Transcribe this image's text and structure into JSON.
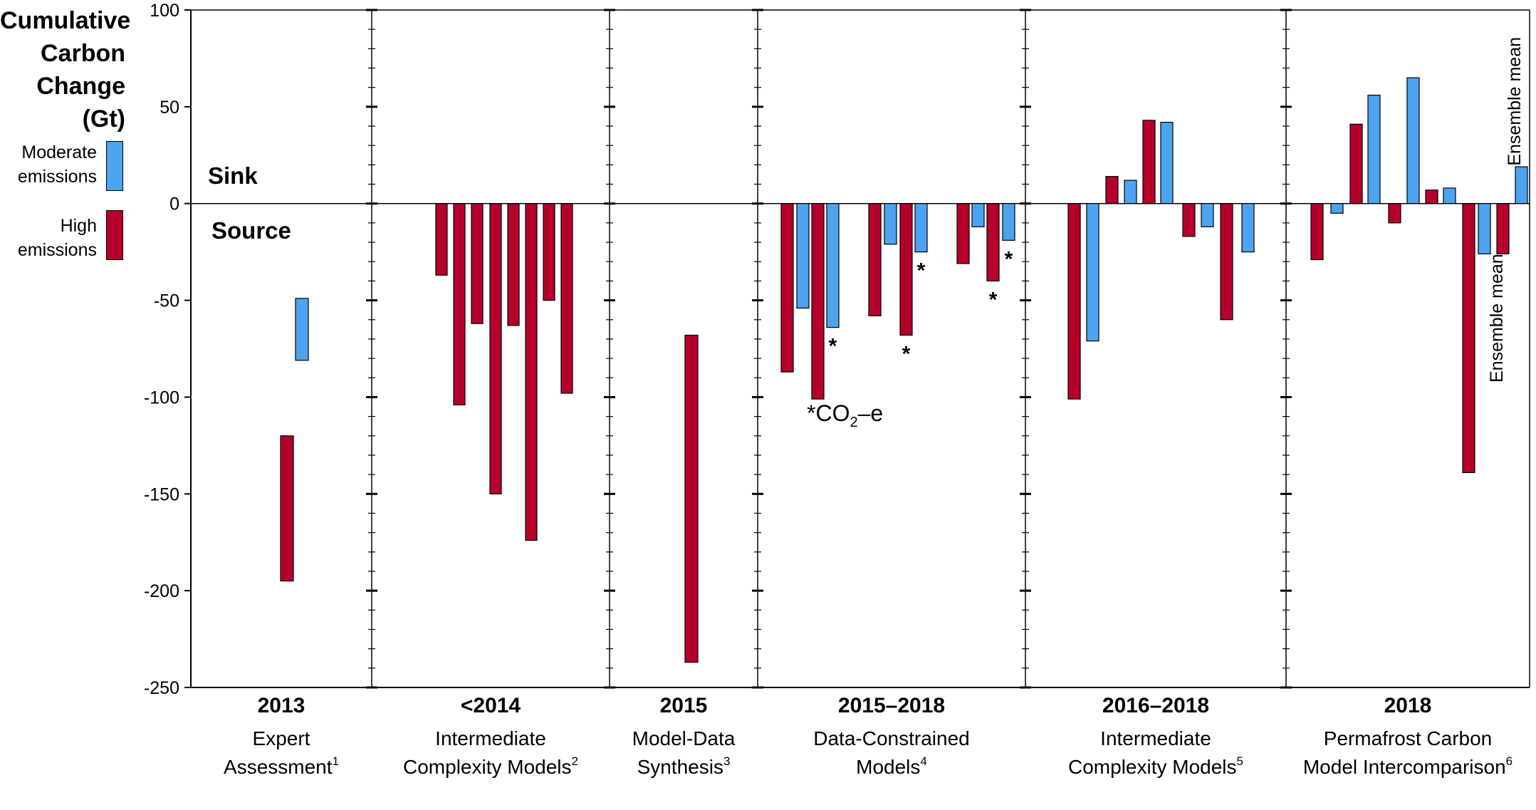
{
  "colors": {
    "moderate": "#4da3f0",
    "high": "#b5002c",
    "axis": "#000000"
  },
  "header": {
    "ylabel_lines": [
      "Cumulative",
      "Carbon",
      "Change (Gt)"
    ]
  },
  "legend": {
    "moderate_lines": [
      "Moderate",
      "emissions"
    ],
    "high_lines": [
      "High",
      "emissions"
    ]
  },
  "annotations": {
    "sink": "Sink",
    "source": "Source",
    "co2e_prefix": "*CO",
    "co2e_sub": "2",
    "co2e_suffix": "–e",
    "ensemble_mean": "Ensemble mean",
    "asterisk": "*"
  },
  "chart_data": {
    "type": "bar",
    "ylim": [
      -250,
      100
    ],
    "yticks": [
      100,
      50,
      0,
      -50,
      -100,
      -150,
      -200,
      -250
    ],
    "ytick_labels": [
      "100",
      "50",
      "0",
      "-50",
      "-100",
      "-150",
      "-200",
      "-250"
    ],
    "groups": [
      {
        "year": "2013",
        "lines": [
          "Expert",
          "Assessment"
        ],
        "sup": "1",
        "bars": [
          {
            "series": "high",
            "low": -195,
            "high": -120
          },
          {
            "series": "moderate",
            "low": -81,
            "high": -49
          }
        ]
      },
      {
        "year": "<2014",
        "lines": [
          "Intermediate",
          "Complexity Models"
        ],
        "sup": "2",
        "bars": [
          {
            "series": "high",
            "value": -37
          },
          {
            "series": "high",
            "value": -104
          },
          {
            "series": "high",
            "value": -62
          },
          {
            "series": "high",
            "value": -150
          },
          {
            "series": "high",
            "value": -63
          },
          {
            "series": "high",
            "value": -174
          },
          {
            "series": "high",
            "value": -50
          },
          {
            "series": "high",
            "value": -98
          }
        ]
      },
      {
        "year": "2015",
        "lines": [
          "Model-Data",
          "Synthesis"
        ],
        "sup": "3",
        "bars": [
          {
            "series": "high",
            "low": -237,
            "high": -68
          }
        ]
      },
      {
        "year": "2015–2018",
        "lines": [
          "Data-Constrained",
          "Models"
        ],
        "sup": "4",
        "bars": [
          {
            "series": "high",
            "value": -87
          },
          {
            "series": "moderate",
            "value": -54
          },
          {
            "series": "high",
            "value": -101
          },
          {
            "series": "moderate",
            "value": -64,
            "co2e": true
          },
          {
            "series": "high",
            "value": -58
          },
          {
            "series": "moderate",
            "value": -21
          },
          {
            "series": "high",
            "value": -68,
            "co2e": true
          },
          {
            "series": "moderate",
            "value": -25,
            "co2e": true
          },
          {
            "series": "high",
            "value": -31
          },
          {
            "series": "moderate",
            "value": -12
          },
          {
            "series": "high",
            "value": -40,
            "co2e": true
          },
          {
            "series": "moderate",
            "value": -19,
            "co2e": true
          }
        ]
      },
      {
        "year": "2016–2018",
        "lines": [
          "Intermediate",
          "Complexity Models"
        ],
        "sup": "5",
        "bars": [
          {
            "series": "high",
            "value": -101
          },
          {
            "series": "moderate",
            "value": -71
          },
          {
            "series": "high",
            "value": 14
          },
          {
            "series": "moderate",
            "value": 12
          },
          {
            "series": "high",
            "value": 43
          },
          {
            "series": "moderate",
            "value": 42
          },
          {
            "series": "high",
            "value": -17
          },
          {
            "series": "moderate",
            "value": -12
          },
          {
            "series": "high",
            "value": -60
          },
          {
            "series": "moderate",
            "value": -25
          }
        ]
      },
      {
        "year": "2018",
        "lines": [
          "Permafrost Carbon",
          "Model Intercomparison"
        ],
        "sup": "6",
        "bars": [
          {
            "series": "high",
            "value": -29
          },
          {
            "series": "moderate",
            "value": -5
          },
          {
            "series": "high",
            "value": 41
          },
          {
            "series": "moderate",
            "value": 56
          },
          {
            "series": "high",
            "value": -10
          },
          {
            "series": "moderate",
            "value": 65
          },
          {
            "series": "high",
            "value": 7
          },
          {
            "series": "moderate",
            "value": 8
          },
          {
            "series": "high",
            "value": -139
          },
          {
            "series": "moderate",
            "value": -26
          },
          {
            "series": "high",
            "value": -26,
            "ensemble_mean": true
          },
          {
            "series": "moderate",
            "value": 19,
            "ensemble_mean": true
          }
        ]
      }
    ]
  }
}
